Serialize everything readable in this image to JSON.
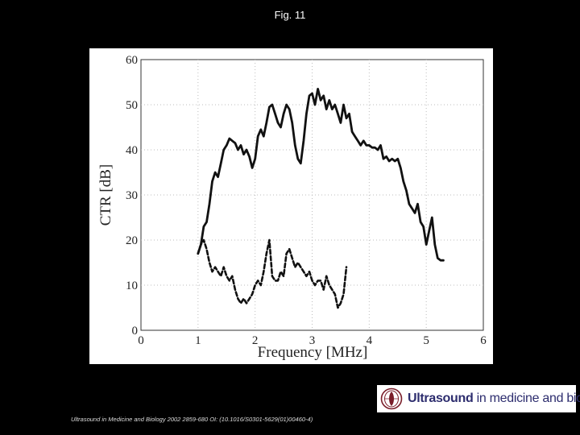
{
  "header": {
    "title": "Fig. 11"
  },
  "chart_data": {
    "type": "line",
    "title": "",
    "xlabel": "Frequency [MHz]",
    "ylabel": "CTR [dB]",
    "xlim": [
      0,
      6
    ],
    "ylim": [
      0,
      60
    ],
    "x_ticks": [
      "0",
      "1",
      "2",
      "3",
      "4",
      "5",
      "6"
    ],
    "y_ticks": [
      "0",
      "10",
      "20",
      "30",
      "40",
      "50",
      "60"
    ],
    "grid": true,
    "legend": "none",
    "series": [
      {
        "style": "solid",
        "color": "#111111",
        "x": [
          1.0,
          1.05,
          1.1,
          1.15,
          1.2,
          1.25,
          1.3,
          1.35,
          1.4,
          1.45,
          1.5,
          1.55,
          1.6,
          1.65,
          1.7,
          1.75,
          1.8,
          1.85,
          1.9,
          1.95,
          2.0,
          2.05,
          2.1,
          2.15,
          2.2,
          2.25,
          2.3,
          2.35,
          2.4,
          2.45,
          2.5,
          2.55,
          2.6,
          2.65,
          2.7,
          2.75,
          2.8,
          2.85,
          2.9,
          2.95,
          3.0,
          3.05,
          3.1,
          3.15,
          3.2,
          3.25,
          3.3,
          3.35,
          3.4,
          3.45,
          3.5,
          3.55,
          3.6,
          3.65,
          3.7,
          3.75,
          3.8,
          3.85,
          3.9,
          3.95,
          4.0,
          4.05,
          4.1,
          4.15,
          4.2,
          4.25,
          4.3,
          4.35,
          4.4,
          4.45,
          4.5,
          4.55,
          4.6,
          4.65,
          4.7,
          4.75,
          4.8,
          4.85,
          4.9,
          4.95,
          5.0,
          5.05,
          5.1,
          5.15,
          5.2,
          5.25,
          5.3
        ],
        "y": [
          17,
          19,
          23,
          24,
          28,
          33,
          35,
          34,
          37,
          40,
          41,
          42.5,
          42,
          41.5,
          40,
          41,
          39,
          40,
          38.5,
          36,
          38,
          43,
          44.5,
          43,
          46,
          49.5,
          50,
          48,
          46,
          45,
          48,
          50,
          49,
          46,
          41,
          38,
          37,
          42,
          48,
          52,
          52.5,
          50,
          53.5,
          51,
          52,
          49,
          51,
          49,
          50,
          48,
          46,
          50,
          47,
          48,
          44,
          43,
          42,
          41,
          42,
          41,
          41,
          40.5,
          40.5,
          40,
          41,
          38,
          38.5,
          37.5,
          38,
          37.5,
          38,
          36,
          33,
          31,
          28,
          27,
          26,
          28,
          24,
          23,
          19,
          22,
          25,
          19,
          16,
          15.5,
          15.5
        ]
      },
      {
        "style": "dashed",
        "color": "#111111",
        "x": [
          1.0,
          1.05,
          1.1,
          1.15,
          1.2,
          1.25,
          1.3,
          1.35,
          1.4,
          1.45,
          1.5,
          1.55,
          1.6,
          1.65,
          1.7,
          1.75,
          1.8,
          1.85,
          1.9,
          1.95,
          2.0,
          2.05,
          2.1,
          2.15,
          2.2,
          2.25,
          2.3,
          2.35,
          2.4,
          2.45,
          2.5,
          2.55,
          2.6,
          2.65,
          2.7,
          2.75,
          2.8,
          2.85,
          2.9,
          2.95,
          3.0,
          3.05,
          3.1,
          3.15,
          3.2,
          3.25,
          3.3,
          3.35,
          3.4,
          3.45,
          3.5,
          3.55,
          3.6
        ],
        "y": [
          17,
          19,
          20,
          18,
          15,
          13,
          14,
          13,
          12,
          14,
          12,
          11,
          12,
          9,
          7,
          6,
          7,
          6,
          7,
          8,
          10,
          11,
          10,
          13,
          17,
          20,
          12,
          11,
          11,
          13,
          12,
          17,
          18,
          16,
          14,
          15,
          14,
          13,
          12,
          13,
          11,
          10,
          11,
          11,
          9,
          12,
          10,
          9,
          8,
          5,
          6,
          8,
          14
        ]
      }
    ]
  },
  "footer": {
    "citation": "Ultrasound in Medicine and Biology 2002 2859-680 OI: (10.1016/S0301-5629(01)00460-4)"
  },
  "logo": {
    "strong": "Ultrasound",
    "rest": " in medicine and biology",
    "icon": "journal-emblem-icon"
  }
}
